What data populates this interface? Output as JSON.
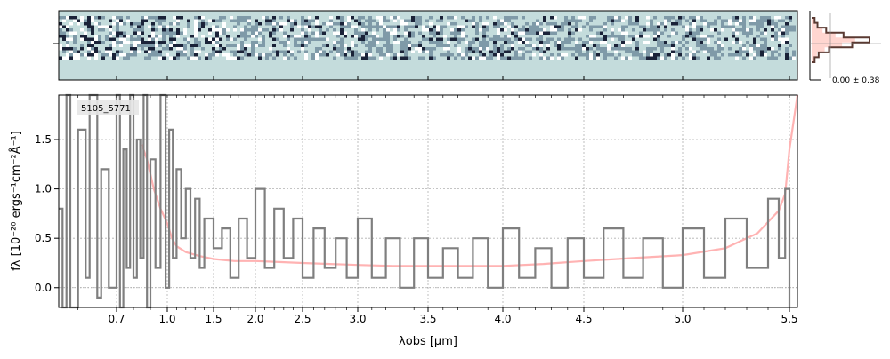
{
  "chart_data": {
    "type": "line",
    "object_id": "5105_5771",
    "xlabel": "λobs [μm]",
    "ylabel": "fλ [10⁻²⁰ ergs⁻¹cm⁻²Å⁻¹]",
    "xscale": "nonlinear (dispersion-like); ticks unevenly spaced",
    "xlim": [
      0.55,
      5.52
    ],
    "ylim": [
      -0.2,
      1.95
    ],
    "x_ticks": [
      0.7,
      1.0,
      1.5,
      2.0,
      2.5,
      3.0,
      3.5,
      4.0,
      4.5,
      5.0,
      5.5
    ],
    "y_ticks": [
      0.0,
      0.5,
      1.0,
      1.5
    ],
    "grid": true,
    "legend": "none",
    "colors": {
      "spectrum": "#7f7f7f",
      "model": "#ffb3b3",
      "twod_background": "#c4dcdc",
      "twod_dark": "#1a2238"
    },
    "series": [
      {
        "name": "",
        "values": [
          [
            0.85,
            1.45
          ],
          [
            0.88,
            1.3
          ],
          [
            0.92,
            1.0
          ],
          [
            0.96,
            0.8
          ],
          [
            1.0,
            0.65
          ],
          [
            1.05,
            0.5
          ],
          [
            1.1,
            0.42
          ],
          [
            1.2,
            0.36
          ],
          [
            1.35,
            0.32
          ],
          [
            1.5,
            0.29
          ],
          [
            1.75,
            0.27
          ],
          [
            2.0,
            0.27
          ],
          [
            2.25,
            0.26
          ],
          [
            2.5,
            0.25
          ],
          [
            2.75,
            0.24
          ],
          [
            3.0,
            0.23
          ],
          [
            3.25,
            0.22
          ],
          [
            3.5,
            0.22
          ],
          [
            3.75,
            0.22
          ],
          [
            4.0,
            0.22
          ],
          [
            4.25,
            0.24
          ],
          [
            4.5,
            0.27
          ],
          [
            4.75,
            0.3
          ],
          [
            5.0,
            0.33
          ],
          [
            5.2,
            0.4
          ],
          [
            5.35,
            0.55
          ],
          [
            5.45,
            0.78
          ],
          [
            5.48,
            0.95
          ],
          [
            5.5,
            1.4
          ],
          [
            5.52,
            1.95
          ]
        ]
      },
      {
        "name": "",
        "values": [
          [
            0.55,
            0.8
          ],
          [
            0.56,
            -0.2
          ],
          [
            0.57,
            1.95
          ],
          [
            0.58,
            -0.2
          ],
          [
            0.6,
            1.6
          ],
          [
            0.62,
            0.1
          ],
          [
            0.63,
            1.95
          ],
          [
            0.65,
            -0.1
          ],
          [
            0.66,
            1.2
          ],
          [
            0.68,
            0.0
          ],
          [
            0.7,
            1.95
          ],
          [
            0.72,
            -0.2
          ],
          [
            0.74,
            1.4
          ],
          [
            0.76,
            0.2
          ],
          [
            0.78,
            1.95
          ],
          [
            0.8,
            0.1
          ],
          [
            0.82,
            1.5
          ],
          [
            0.84,
            0.3
          ],
          [
            0.86,
            1.95
          ],
          [
            0.88,
            -0.2
          ],
          [
            0.9,
            1.3
          ],
          [
            0.93,
            0.2
          ],
          [
            0.96,
            1.95
          ],
          [
            0.99,
            0.0
          ],
          [
            1.02,
            1.6
          ],
          [
            1.06,
            0.3
          ],
          [
            1.1,
            1.2
          ],
          [
            1.15,
            0.5
          ],
          [
            1.2,
            1.0
          ],
          [
            1.25,
            0.3
          ],
          [
            1.3,
            0.9
          ],
          [
            1.35,
            0.2
          ],
          [
            1.4,
            0.7
          ],
          [
            1.5,
            0.4
          ],
          [
            1.6,
            0.6
          ],
          [
            1.7,
            0.1
          ],
          [
            1.8,
            0.7
          ],
          [
            1.9,
            0.3
          ],
          [
            2.0,
            1.0
          ],
          [
            2.1,
            0.2
          ],
          [
            2.2,
            0.8
          ],
          [
            2.3,
            0.3
          ],
          [
            2.4,
            0.7
          ],
          [
            2.5,
            0.1
          ],
          [
            2.6,
            0.6
          ],
          [
            2.7,
            0.2
          ],
          [
            2.8,
            0.5
          ],
          [
            2.9,
            0.1
          ],
          [
            3.0,
            0.7
          ],
          [
            3.1,
            0.1
          ],
          [
            3.2,
            0.5
          ],
          [
            3.3,
            0.0
          ],
          [
            3.4,
            0.5
          ],
          [
            3.5,
            0.1
          ],
          [
            3.6,
            0.4
          ],
          [
            3.7,
            0.1
          ],
          [
            3.8,
            0.5
          ],
          [
            3.9,
            0.0
          ],
          [
            4.0,
            0.6
          ],
          [
            4.1,
            0.1
          ],
          [
            4.2,
            0.4
          ],
          [
            4.3,
            0.0
          ],
          [
            4.4,
            0.5
          ],
          [
            4.5,
            0.1
          ],
          [
            4.6,
            0.6
          ],
          [
            4.7,
            0.1
          ],
          [
            4.8,
            0.5
          ],
          [
            4.9,
            0.0
          ],
          [
            5.0,
            0.6
          ],
          [
            5.1,
            0.1
          ],
          [
            5.2,
            0.7
          ],
          [
            5.3,
            0.2
          ],
          [
            5.4,
            0.9
          ],
          [
            5.45,
            0.3
          ],
          [
            5.48,
            1.0
          ],
          [
            5.5,
            -0.2
          ]
        ]
      }
    ],
    "twod_panel": {
      "ylabel_tick": "",
      "note": "2D spectrum cutout"
    },
    "hist_panel": {
      "label": "0.00 ± 0.38",
      "profile": [
        0.05,
        0.1,
        0.25,
        0.55,
        1.0,
        0.7,
        0.3,
        0.12,
        0.05
      ]
    }
  }
}
